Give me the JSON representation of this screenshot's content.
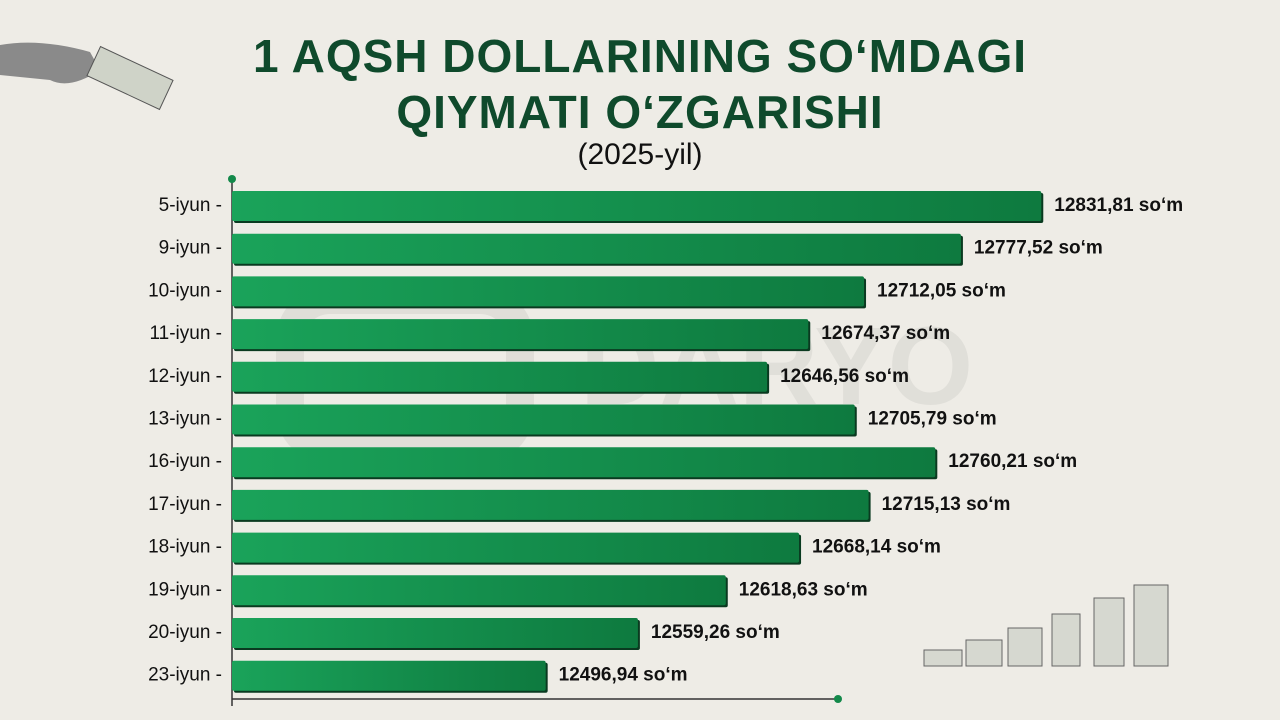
{
  "chart_data": {
    "type": "barh",
    "title": "1 AQSH DOLLARINING SO‘MDAGI\nQIYMATI O‘ZGARISHI",
    "subtitle": "(2025-yil)",
    "watermark": "DARYO",
    "categories": [
      "5-iyun -",
      "9-iyun -",
      "10-iyun -",
      "11-iyun -",
      "12-iyun -",
      "13-iyun -",
      "16-iyun -",
      "17-iyun -",
      "18-iyun -",
      "19-iyun -",
      "20-iyun -",
      "23-iyun -"
    ],
    "values": [
      12831.81,
      12777.52,
      12712.05,
      12674.37,
      12646.56,
      12705.79,
      12760.21,
      12715.13,
      12668.14,
      12618.63,
      12559.26,
      12496.94
    ],
    "value_labels": [
      "12831,81 so‘m",
      "12777,52 so‘m",
      "12712,05 so‘m",
      "12674,37 so‘m",
      "12646,56 so‘m",
      "12705,79 so‘m",
      "12760,21 so‘m",
      "12715,13 so‘m",
      "12668,14 so‘m",
      "12618,63 so‘m",
      "12559,26 so‘m",
      "12496,94 so‘m"
    ],
    "color": "#13894a",
    "xlim": [
      12285,
      12835
    ]
  }
}
